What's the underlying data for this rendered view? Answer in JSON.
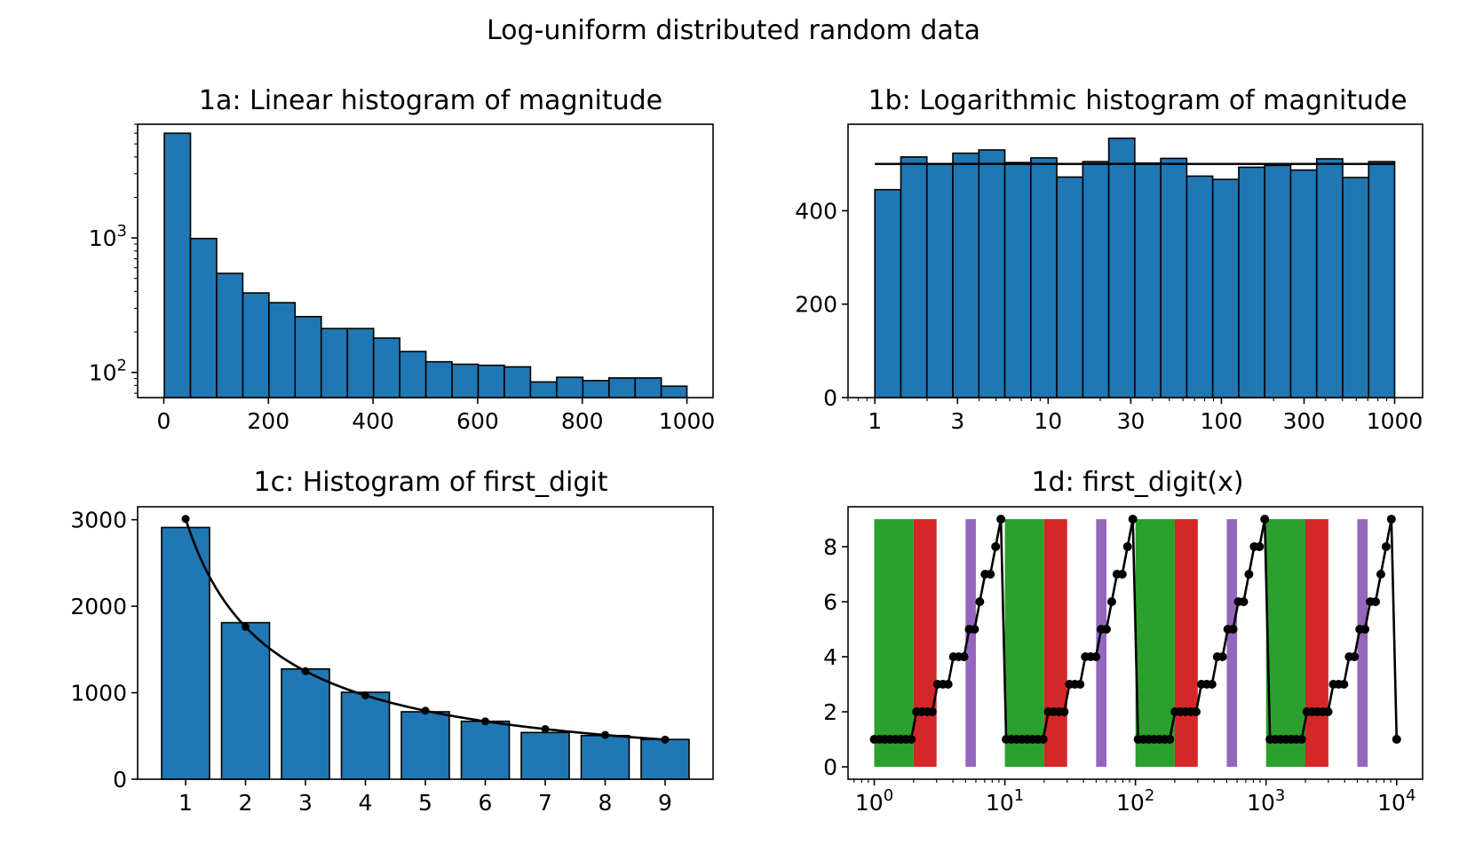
{
  "figure": {
    "suptitle": "Log-uniform distributed random data"
  },
  "colors": {
    "bar": "#1f77b4",
    "edge": "#000000",
    "green": "#2ca02c",
    "red": "#d62728",
    "purple": "#9467bd",
    "line": "#000000"
  },
  "chart_data": [
    {
      "id": "1a",
      "type": "bar",
      "title": "1a: Linear histogram of magnitude",
      "xlabel": "",
      "ylabel": "",
      "xscale": "linear",
      "yscale": "log",
      "xlim": [
        -50,
        1050
      ],
      "ylim": [
        65,
        7000
      ],
      "bin_edges": [
        1,
        51,
        101,
        151,
        201,
        251,
        301,
        351,
        401,
        451,
        501,
        551,
        601,
        651,
        701,
        751,
        801,
        851,
        901,
        951,
        1000
      ],
      "values": [
        6000,
        990,
        545,
        390,
        330,
        260,
        212,
        212,
        180,
        143,
        120,
        115,
        113,
        110,
        85,
        92,
        87,
        91,
        91,
        79
      ],
      "xticks": [
        0,
        200,
        400,
        600,
        800,
        1000
      ],
      "xtick_labels": [
        "0",
        "200",
        "400",
        "600",
        "800",
        "1000"
      ],
      "yticks": [
        100,
        1000
      ],
      "ytick_labels": [
        {
          "base": "10",
          "exp": "2"
        },
        {
          "base": "10",
          "exp": "3"
        }
      ]
    },
    {
      "id": "1b",
      "type": "bar",
      "title": "1b: Logarithmic histogram of magnitude",
      "xlabel": "",
      "ylabel": "",
      "xscale": "log",
      "yscale": "linear",
      "xlim": [
        0.7,
        1450
      ],
      "ylim": [
        0,
        585
      ],
      "bin_edges": [
        1,
        1.4125,
        1.9953,
        2.8184,
        3.9811,
        5.6234,
        7.9433,
        11.2202,
        15.8489,
        22.3872,
        31.6228,
        44.6684,
        63.0957,
        89.1251,
        125.8925,
        177.8279,
        251.1886,
        354.8134,
        501.1872,
        707.9458,
        1000
      ],
      "values": [
        445,
        515,
        500,
        523,
        530,
        503,
        513,
        472,
        505,
        555,
        502,
        512,
        474,
        467,
        493,
        497,
        487,
        511,
        471,
        505
      ],
      "reference_line": 500,
      "xticks": [
        1,
        3,
        10,
        30,
        100,
        300,
        1000
      ],
      "xtick_labels": [
        "1",
        "3",
        "10",
        "30",
        "100",
        "300",
        "1000"
      ],
      "yticks": [
        0,
        200,
        400
      ],
      "ytick_labels": [
        "0",
        "200",
        "400"
      ]
    },
    {
      "id": "1c",
      "type": "bar",
      "title": "1c: Histogram of first_digit",
      "xlabel": "",
      "ylabel": "",
      "xlim": [
        0.2,
        9.8
      ],
      "ylim": [
        0,
        3150
      ],
      "categories": [
        1,
        2,
        3,
        4,
        5,
        6,
        7,
        8,
        9
      ],
      "values": [
        2910,
        1810,
        1275,
        1005,
        780,
        670,
        540,
        505,
        460
      ],
      "curve_points": [
        3010,
        1761,
        1249,
        969,
        792,
        669,
        580,
        512,
        458
      ],
      "xticks": [
        1,
        2,
        3,
        4,
        5,
        6,
        7,
        8,
        9
      ],
      "xtick_labels": [
        "1",
        "2",
        "3",
        "4",
        "5",
        "6",
        "7",
        "8",
        "9"
      ],
      "yticks": [
        0,
        1000,
        2000,
        3000
      ],
      "ytick_labels": [
        "0",
        "1000",
        "2000",
        "3000"
      ]
    },
    {
      "id": "1d",
      "type": "line",
      "title": "1d: first_digit(x)",
      "xlabel": "",
      "ylabel": "",
      "xscale": "log",
      "yscale": "linear",
      "xlim": [
        0.63,
        15800
      ],
      "ylim": [
        -0.45,
        9.45
      ],
      "spans": [
        {
          "from": 1,
          "to": 2,
          "color": "green"
        },
        {
          "from": 2,
          "to": 3,
          "color": "red"
        },
        {
          "from": 5,
          "to": 6,
          "color": "purple"
        },
        {
          "from": 10,
          "to": 20,
          "color": "green"
        },
        {
          "from": 20,
          "to": 30,
          "color": "red"
        },
        {
          "from": 50,
          "to": 60,
          "color": "purple"
        },
        {
          "from": 100,
          "to": 200,
          "color": "green"
        },
        {
          "from": 200,
          "to": 300,
          "color": "red"
        },
        {
          "from": 500,
          "to": 600,
          "color": "purple"
        },
        {
          "from": 1000,
          "to": 2000,
          "color": "green"
        },
        {
          "from": 2000,
          "to": 3000,
          "color": "red"
        },
        {
          "from": 5000,
          "to": 6000,
          "color": "purple"
        }
      ],
      "span_ymax": 9,
      "x_range": [
        1,
        10000
      ],
      "xticks": [
        1,
        10,
        100,
        1000,
        10000
      ],
      "xtick_labels": [
        {
          "base": "10",
          "exp": "0"
        },
        {
          "base": "10",
          "exp": "1"
        },
        {
          "base": "10",
          "exp": "2"
        },
        {
          "base": "10",
          "exp": "3"
        },
        {
          "base": "10",
          "exp": "4"
        }
      ],
      "yticks": [
        0,
        2,
        4,
        6,
        8
      ],
      "ytick_labels": [
        "0",
        "2",
        "4",
        "6",
        "8"
      ]
    }
  ]
}
